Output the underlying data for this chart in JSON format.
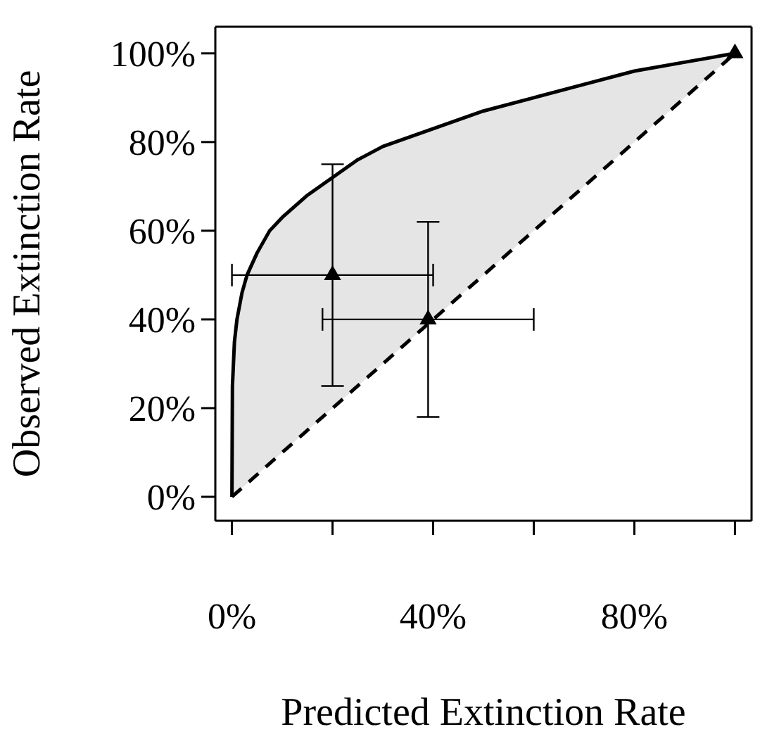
{
  "chart_data": {
    "type": "line",
    "xlabel": "Predicted Extinction Rate",
    "ylabel": "Observed Extinction Rate",
    "xlim": [
      -3.3,
      103.3
    ],
    "ylim": [
      -5.4,
      106
    ],
    "xticks": [
      {
        "value": 0,
        "label": "0%"
      },
      {
        "value": 20,
        "label": null
      },
      {
        "value": 40,
        "label": "40%"
      },
      {
        "value": 60,
        "label": null
      },
      {
        "value": 80,
        "label": "80%"
      },
      {
        "value": 100,
        "label": null
      }
    ],
    "yticks": [
      {
        "value": 0,
        "label": "0%"
      },
      {
        "value": 20,
        "label": "20%"
      },
      {
        "value": 40,
        "label": "40%"
      },
      {
        "value": 60,
        "label": "60%"
      },
      {
        "value": 80,
        "label": "80%"
      },
      {
        "value": 100,
        "label": "100%"
      }
    ],
    "series": [
      {
        "color": "#000000",
        "line_style": "solid",
        "x": [
          0,
          0.1,
          0.5,
          1,
          2,
          3,
          5,
          7.5,
          10,
          15,
          20,
          25,
          30,
          40,
          50,
          60,
          70,
          80,
          90,
          100
        ],
        "values": [
          0,
          25,
          35,
          40,
          46,
          50,
          55,
          60,
          63,
          68,
          72,
          76,
          79,
          83,
          87,
          90,
          93,
          96,
          98,
          100
        ],
        "lower": [
          0,
          0.1,
          0.5,
          1,
          2,
          3,
          5,
          7.5,
          10,
          15,
          20,
          25,
          30,
          40,
          50,
          60,
          70,
          80,
          90,
          100
        ],
        "upper": [
          0,
          25,
          35,
          40,
          46,
          50,
          55,
          60,
          63,
          68,
          72,
          76,
          79,
          83,
          87,
          90,
          93,
          96,
          98,
          100
        ]
      },
      {
        "color": "#000000",
        "line_style": "dashed",
        "x": [
          0,
          100
        ],
        "values": [
          0,
          100
        ]
      },
      {
        "type": "scatter",
        "color": "#000000",
        "marker": "triangle",
        "x": [
          20,
          39,
          100
        ],
        "values": [
          50,
          40,
          100
        ],
        "errors": [
          [
            25,
            75
          ],
          [
            18,
            62
          ],
          null
        ],
        "xerrors": [
          [
            0,
            40
          ],
          [
            18,
            60
          ],
          null
        ]
      }
    ]
  }
}
